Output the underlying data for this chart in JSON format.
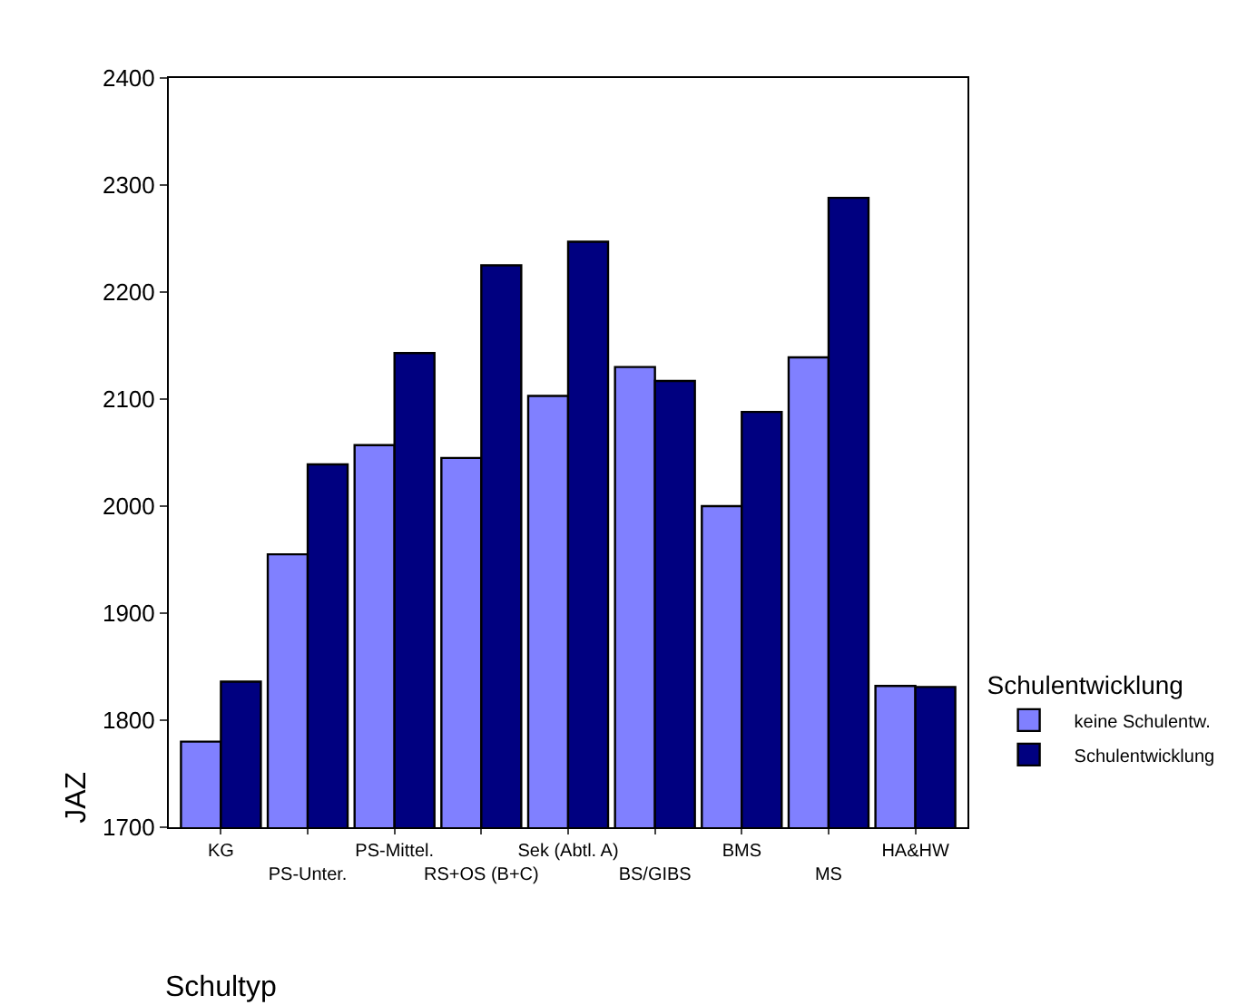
{
  "chart_data": {
    "type": "bar",
    "xlabel": "Schultyp",
    "ylabel": "JAZ",
    "legend_title": "Schulentwicklung",
    "categories": [
      "KG",
      "PS-Unter.",
      "PS-Mittel.",
      "RS+OS (B+C)",
      "Sek (Abtl. A)",
      "BS/GIBS",
      "BMS",
      "MS",
      "HA&HW"
    ],
    "series": [
      {
        "name": "keine Schulentw.",
        "color": "#8080ff",
        "values": [
          1780,
          1955,
          2057,
          2045,
          2103,
          2130,
          2000,
          2139,
          1832
        ]
      },
      {
        "name": "Schulentwicklung",
        "color": "#000080",
        "values": [
          1836,
          2039,
          2143,
          2225,
          2247,
          2117,
          2088,
          2288,
          1831
        ]
      }
    ],
    "ylim": [
      1700,
      2400
    ],
    "yticks": [
      1700,
      1800,
      1900,
      2000,
      2100,
      2200,
      2300,
      2400
    ],
    "legend": "right"
  }
}
